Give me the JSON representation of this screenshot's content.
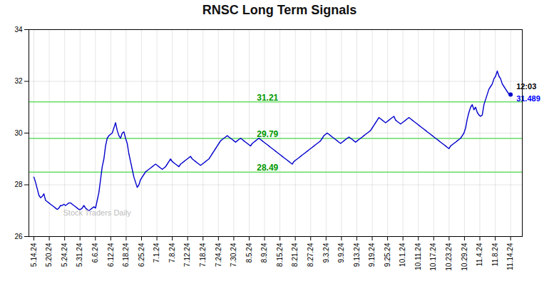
{
  "chart_data": {
    "type": "line",
    "title": "RNSC Long Term Signals",
    "color": "#0000cc",
    "x": [
      0,
      1,
      2,
      3,
      4,
      5,
      6,
      7,
      8,
      9,
      10,
      11,
      12,
      13,
      14,
      15,
      16,
      17,
      18,
      19,
      20,
      21,
      22,
      23,
      24,
      25,
      26,
      27,
      28,
      29,
      30,
      31,
      32,
      33,
      34,
      35,
      36,
      37,
      38,
      39,
      40,
      41,
      42,
      43,
      44,
      45,
      46,
      47,
      48,
      49,
      50,
      51,
      52,
      53,
      54,
      55,
      56,
      57,
      58,
      59,
      60,
      61,
      62,
      63,
      64,
      65,
      66,
      67,
      68,
      69,
      70,
      71,
      72,
      73,
      74,
      75,
      76,
      77,
      78,
      79,
      80,
      81,
      82,
      83,
      84,
      85,
      86,
      87,
      88,
      89,
      90,
      91,
      92,
      93,
      94,
      95,
      96,
      97,
      98,
      99,
      100,
      101,
      102,
      103,
      104,
      105,
      106,
      107,
      108,
      109,
      110,
      111,
      112,
      113,
      114,
      115,
      116,
      117,
      118,
      119,
      120,
      121,
      122,
      123,
      124,
      125,
      126,
      127,
      128,
      129,
      130,
      131,
      132,
      133,
      134,
      135,
      136,
      137,
      138,
      139,
      140,
      141,
      142,
      143,
      144,
      145,
      146,
      147,
      148,
      149,
      150,
      151,
      152,
      153,
      154,
      155,
      156,
      157,
      158,
      159,
      160,
      161,
      162,
      163,
      164,
      165,
      166,
      167,
      168,
      169,
      170,
      171,
      172,
      173,
      174,
      175,
      176,
      177,
      178,
      179,
      180,
      181,
      182,
      183,
      184,
      185,
      186,
      187,
      188,
      189,
      190,
      191,
      192,
      193,
      194,
      195,
      196,
      197,
      198,
      199,
      200,
      201,
      202,
      203,
      204,
      205,
      206,
      207,
      208,
      209,
      210,
      211,
      212,
      213,
      214,
      215,
      216,
      217,
      218,
      219,
      220,
      221,
      222,
      223,
      224,
      225,
      226,
      227,
      228,
      229,
      230,
      231,
      232,
      233,
      234,
      235,
      236,
      237,
      238,
      239,
      240,
      241,
      242,
      243,
      244,
      245,
      246,
      247,
      248,
      249,
      250,
      251,
      252,
      253,
      254,
      255,
      256,
      257,
      258,
      259,
      260,
      261,
      262,
      263,
      264,
      265,
      266,
      267,
      268,
      269,
      270,
      271,
      272,
      273,
      274,
      275,
      276,
      277,
      278,
      279,
      280,
      281,
      282,
      283,
      284,
      285,
      286
    ],
    "values": [
      28.3,
      28.1,
      27.85,
      27.6,
      27.5,
      27.55,
      27.65,
      27.4,
      27.35,
      27.3,
      27.25,
      27.2,
      27.15,
      27.1,
      27.05,
      27.1,
      27.2,
      27.2,
      27.25,
      27.2,
      27.25,
      27.3,
      27.3,
      27.25,
      27.2,
      27.15,
      27.1,
      27.05,
      27.05,
      27.1,
      27.2,
      27.1,
      27.05,
      27.0,
      27.05,
      27.1,
      27.15,
      27.1,
      27.4,
      27.7,
      28.2,
      28.7,
      29.0,
      29.5,
      29.8,
      29.9,
      29.95,
      30.0,
      30.2,
      30.4,
      30.1,
      29.9,
      29.8,
      30.0,
      30.05,
      29.8,
      29.6,
      29.2,
      28.9,
      28.6,
      28.3,
      28.1,
      27.9,
      28.0,
      28.2,
      28.3,
      28.4,
      28.5,
      28.55,
      28.6,
      28.65,
      28.7,
      28.75,
      28.8,
      28.75,
      28.7,
      28.65,
      28.6,
      28.65,
      28.7,
      28.8,
      28.9,
      29.0,
      28.9,
      28.85,
      28.8,
      28.75,
      28.7,
      28.8,
      28.85,
      28.9,
      28.95,
      29.0,
      29.05,
      29.1,
      29.0,
      28.95,
      28.9,
      28.85,
      28.8,
      28.75,
      28.8,
      28.85,
      28.9,
      28.95,
      29.0,
      29.1,
      29.2,
      29.3,
      29.4,
      29.5,
      29.6,
      29.7,
      29.75,
      29.8,
      29.85,
      29.9,
      29.85,
      29.8,
      29.75,
      29.7,
      29.65,
      29.7,
      29.75,
      29.8,
      29.75,
      29.7,
      29.65,
      29.6,
      29.55,
      29.5,
      29.6,
      29.65,
      29.7,
      29.75,
      29.8,
      29.75,
      29.7,
      29.65,
      29.6,
      29.55,
      29.5,
      29.45,
      29.4,
      29.35,
      29.3,
      29.25,
      29.2,
      29.15,
      29.1,
      29.05,
      29.0,
      28.95,
      28.9,
      28.85,
      28.8,
      28.9,
      28.95,
      29.0,
      29.05,
      29.1,
      29.15,
      29.2,
      29.25,
      29.3,
      29.35,
      29.4,
      29.45,
      29.5,
      29.55,
      29.6,
      29.65,
      29.7,
      29.8,
      29.9,
      29.95,
      30.0,
      29.95,
      29.9,
      29.85,
      29.8,
      29.75,
      29.7,
      29.65,
      29.6,
      29.65,
      29.7,
      29.75,
      29.8,
      29.85,
      29.8,
      29.75,
      29.7,
      29.65,
      29.7,
      29.75,
      29.8,
      29.85,
      29.9,
      29.95,
      30.0,
      30.05,
      30.1,
      30.2,
      30.3,
      30.4,
      30.5,
      30.6,
      30.55,
      30.5,
      30.45,
      30.4,
      30.45,
      30.5,
      30.55,
      30.6,
      30.65,
      30.5,
      30.45,
      30.4,
      30.35,
      30.4,
      30.45,
      30.5,
      30.55,
      30.6,
      30.55,
      30.5,
      30.45,
      30.4,
      30.35,
      30.3,
      30.25,
      30.2,
      30.15,
      30.1,
      30.05,
      30.0,
      29.95,
      29.9,
      29.85,
      29.8,
      29.75,
      29.7,
      29.65,
      29.6,
      29.55,
      29.5,
      29.45,
      29.4,
      29.5,
      29.55,
      29.6,
      29.65,
      29.7,
      29.75,
      29.8,
      29.9,
      30.0,
      30.2,
      30.55,
      30.8,
      31.0,
      31.1,
      30.9,
      31.0,
      30.8,
      30.7,
      30.65,
      30.7,
      31.1,
      31.3,
      31.5,
      31.7,
      31.8,
      31.9,
      32.1,
      32.2,
      32.4,
      32.2,
      32.1,
      31.9,
      31.8,
      31.7,
      31.6,
      31.5,
      31.489
    ],
    "xlim": [
      -3,
      293
    ],
    "xticks": [
      {
        "value": 0,
        "label": "5.14.24"
      },
      {
        "value": 9.2258,
        "label": "5.20.24"
      },
      {
        "value": 18.4516,
        "label": "5.24.24"
      },
      {
        "value": 27.6774,
        "label": "5.31.24"
      },
      {
        "value": 36.9032,
        "label": "6.6.24"
      },
      {
        "value": 46.129,
        "label": "6.12.24"
      },
      {
        "value": 55.3548,
        "label": "6.18.24"
      },
      {
        "value": 64.5806,
        "label": "6.25.24"
      },
      {
        "value": 73.8065,
        "label": "7.1.24"
      },
      {
        "value": 83.0323,
        "label": "7.8.24"
      },
      {
        "value": 92.2581,
        "label": "7.12.24"
      },
      {
        "value": 101.4839,
        "label": "7.18.24"
      },
      {
        "value": 110.7097,
        "label": "7.24.24"
      },
      {
        "value": 119.9355,
        "label": "7.30.24"
      },
      {
        "value": 129.1613,
        "label": "8.5.24"
      },
      {
        "value": 138.3871,
        "label": "8.9.24"
      },
      {
        "value": 147.6129,
        "label": "8.15.24"
      },
      {
        "value": 156.8387,
        "label": "8.21.24"
      },
      {
        "value": 166.0645,
        "label": "8.27.24"
      },
      {
        "value": 175.2903,
        "label": "9.3.24"
      },
      {
        "value": 184.5161,
        "label": "9.9.24"
      },
      {
        "value": 193.7419,
        "label": "9.13.24"
      },
      {
        "value": 202.9677,
        "label": "9.19.24"
      },
      {
        "value": 212.1935,
        "label": "9.25.24"
      },
      {
        "value": 221.4194,
        "label": "10.1.24"
      },
      {
        "value": 230.6452,
        "label": "10.11.24"
      },
      {
        "value": 239.871,
        "label": "10.17.24"
      },
      {
        "value": 249.0968,
        "label": "10.23.24"
      },
      {
        "value": 258.3226,
        "label": "10.29.24"
      },
      {
        "value": 267.5484,
        "label": "11.4.24"
      },
      {
        "value": 276.7742,
        "label": "11.8.24"
      },
      {
        "value": 286,
        "label": "11.14.24"
      }
    ],
    "ylim": [
      26,
      34
    ],
    "yticks": [
      26,
      28,
      30,
      32,
      34
    ],
    "grid": true,
    "hlines": {
      "values": [
        28.49,
        29.79,
        31.21
      ],
      "labels": [
        "28.49",
        "29.79",
        "31.21"
      ],
      "color": "#66dd66",
      "label_color": "#009900"
    },
    "end_labels": [
      {
        "text": "12:03",
        "color": "#000000"
      },
      {
        "text": "31.489",
        "color": "#0000ff"
      }
    ],
    "watermark": {
      "text": "Stock Traders Daily",
      "color": "#aaaaaa"
    }
  }
}
